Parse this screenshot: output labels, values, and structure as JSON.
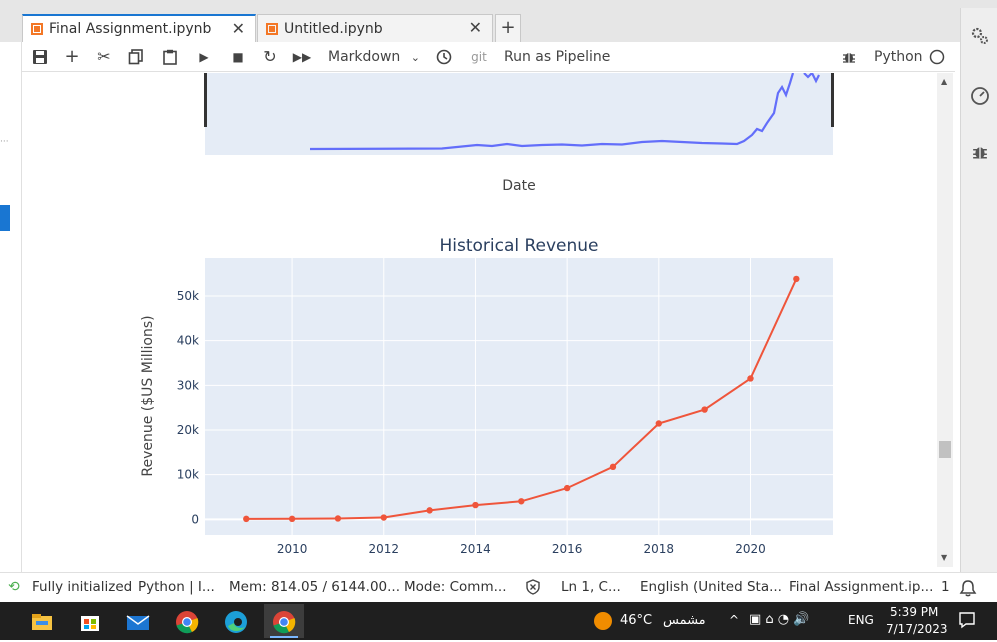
{
  "tabs": [
    {
      "label": "Final Assignment.ipynb",
      "active": true
    },
    {
      "label": "Untitled.ipynb",
      "active": false
    }
  ],
  "toolbar": {
    "cell_type": "Markdown",
    "git_label": "git",
    "pipeline_label": "Run as Pipeline",
    "kernel_name": "Python"
  },
  "top_chart": {
    "xlabel": "Date",
    "line_color": "#636efa"
  },
  "chart_data": {
    "type": "line",
    "title": "Historical Revenue",
    "xlabel": "",
    "ylabel": "Revenue ($US Millions)",
    "x": [
      2009,
      2010,
      2011,
      2012,
      2013,
      2014,
      2015,
      2016,
      2017,
      2018,
      2019,
      2020,
      2021
    ],
    "series": [
      {
        "values": [
          112,
          117,
          204,
          413,
          2013,
          3198,
          4046,
          7000,
          11759,
          21461,
          24578,
          31536,
          53823
        ],
        "color": "#ef553b"
      }
    ],
    "xticks": [
      2010,
      2012,
      2014,
      2016,
      2018,
      2020
    ],
    "yticks": [
      0,
      10000,
      20000,
      30000,
      40000,
      50000
    ],
    "ytick_labels": [
      "0",
      "10k",
      "20k",
      "30k",
      "40k",
      "50k"
    ],
    "xlim": [
      2008.1,
      2021.8
    ],
    "ylim": [
      -3500,
      58500
    ],
    "grid": true,
    "background": "#e5ecf6"
  },
  "statusbar": {
    "init_status": "Fully initialized",
    "kernel_status": "Python | I...",
    "memory": "Mem: 814.05 / 6144.00...",
    "mode": "Mode: Comm...",
    "position": "Ln 1, C...",
    "language": "English (United Sta...",
    "filename": "Final Assignment.ip...",
    "notifications": "1"
  },
  "taskbar": {
    "temperature": "46°C",
    "weather": "مشمس",
    "lang": "ENG",
    "time": "5:39 PM",
    "date": "7/17/2023"
  }
}
